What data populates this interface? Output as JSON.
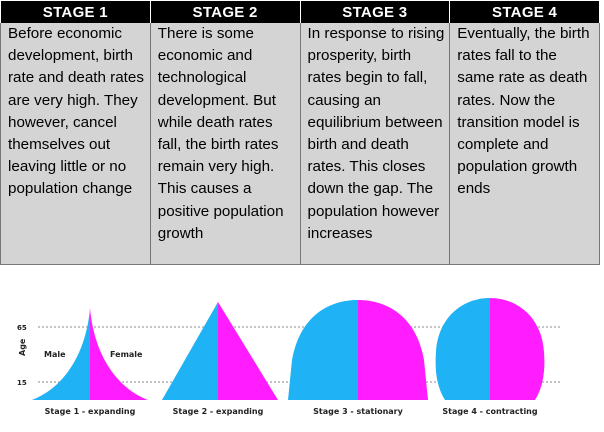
{
  "table": {
    "headers": [
      "STAGE 1",
      "STAGE 2",
      "STAGE 3",
      "STAGE 4"
    ],
    "descriptions": [
      "Before economic development, birth rate and death rates are very high. They however, cancel themselves out leaving little or no population change",
      "There is some economic and technological development. But while death rates fall, the birth rates remain very high. This causes a positive population growth",
      "In response to rising prosperity, birth rates begin to fall, causing an equilibrium between birth and death rates. This closes down the gap. The population however increases",
      "Eventually, the birth rates fall to the same rate as death rates. Now the transition model is complete and population growth ends"
    ]
  },
  "pyramids": {
    "age_axis_label": "Age",
    "age_marks": [
      "65",
      "15"
    ],
    "male_label": "Male",
    "female_label": "Female",
    "captions": [
      "Stage 1 - expanding",
      "Stage 2 - expanding",
      "Stage 3 - stationary",
      "Stage 4 - contracting"
    ],
    "colors": {
      "male": "#1fb2f4",
      "female": "#ff1dff",
      "dotted_line": "#888888"
    }
  }
}
